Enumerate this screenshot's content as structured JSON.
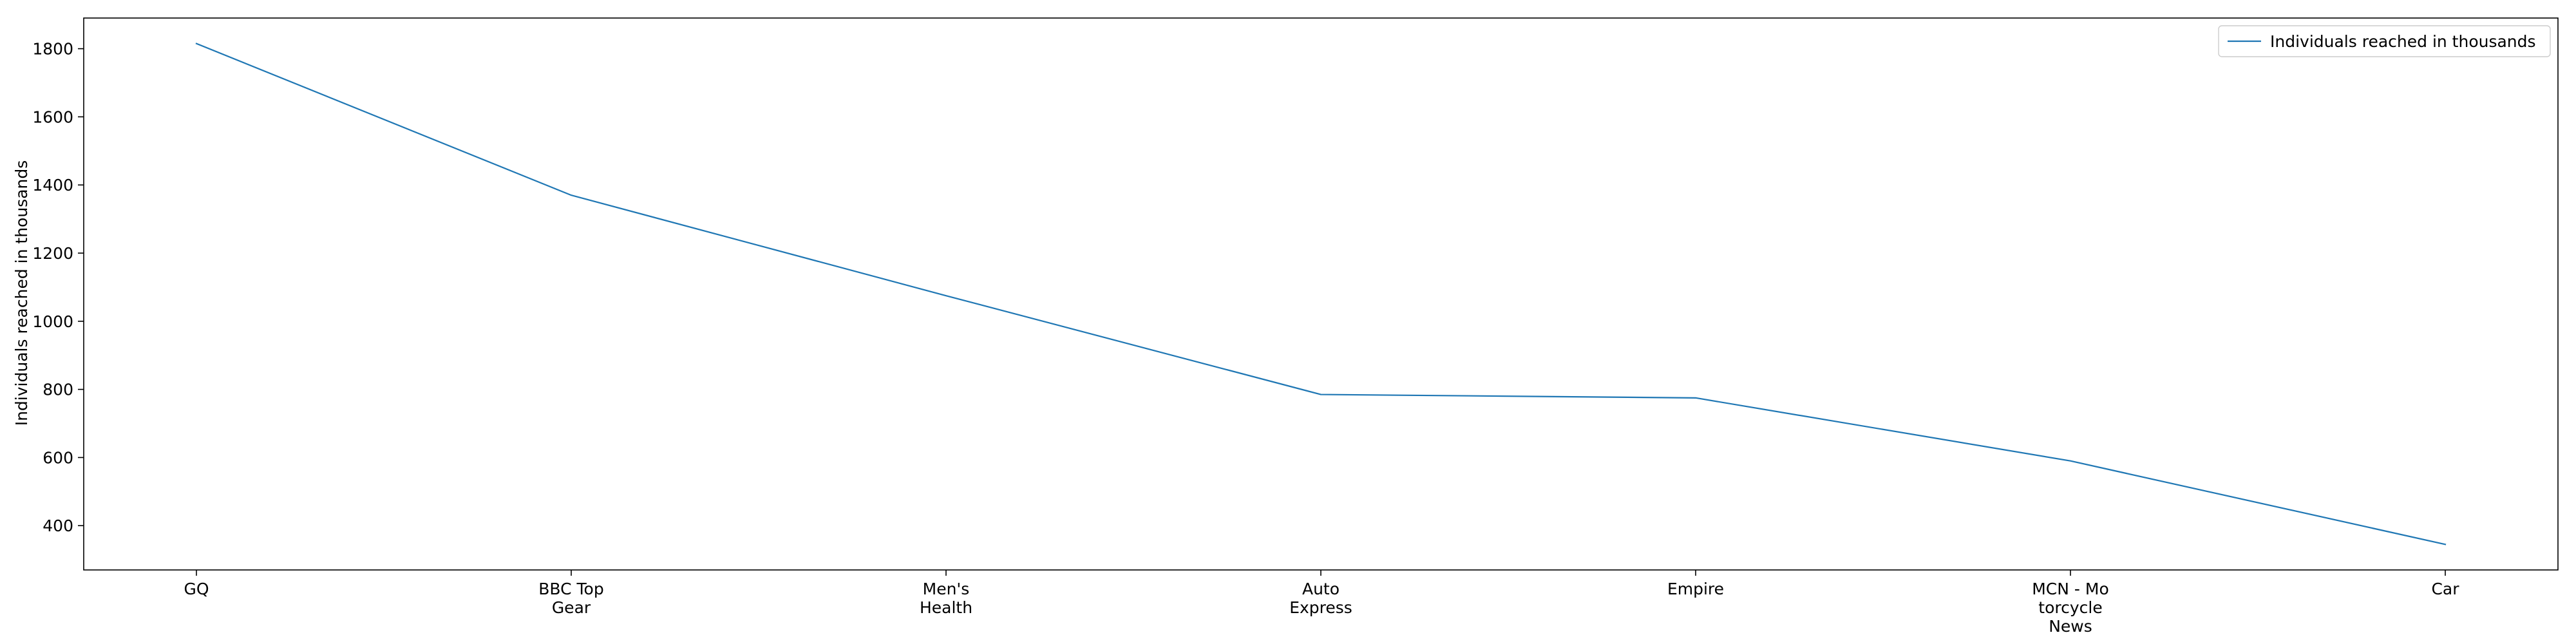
{
  "chart_data": {
    "type": "line",
    "title": "",
    "xlabel": "",
    "ylabel": "Individuals reached in thousands",
    "categories": [
      [
        "GQ"
      ],
      [
        "BBC Top",
        "Gear"
      ],
      [
        "Men's",
        "Health"
      ],
      [
        "Auto",
        "Express"
      ],
      [
        "Empire"
      ],
      [
        "MCN - Mo",
        "torcycle",
        "News"
      ],
      [
        "Car"
      ]
    ],
    "series": [
      {
        "name": "Individuals reached in thousands",
        "values": [
          1815,
          1370,
          1075,
          785,
          775,
          590,
          345
        ],
        "color": "#1f77b4"
      }
    ],
    "ylim": [
      270,
      1890
    ],
    "yticks": [
      400,
      600,
      800,
      1000,
      1200,
      1400,
      1600,
      1800
    ],
    "grid": false,
    "legend": "top-right"
  }
}
